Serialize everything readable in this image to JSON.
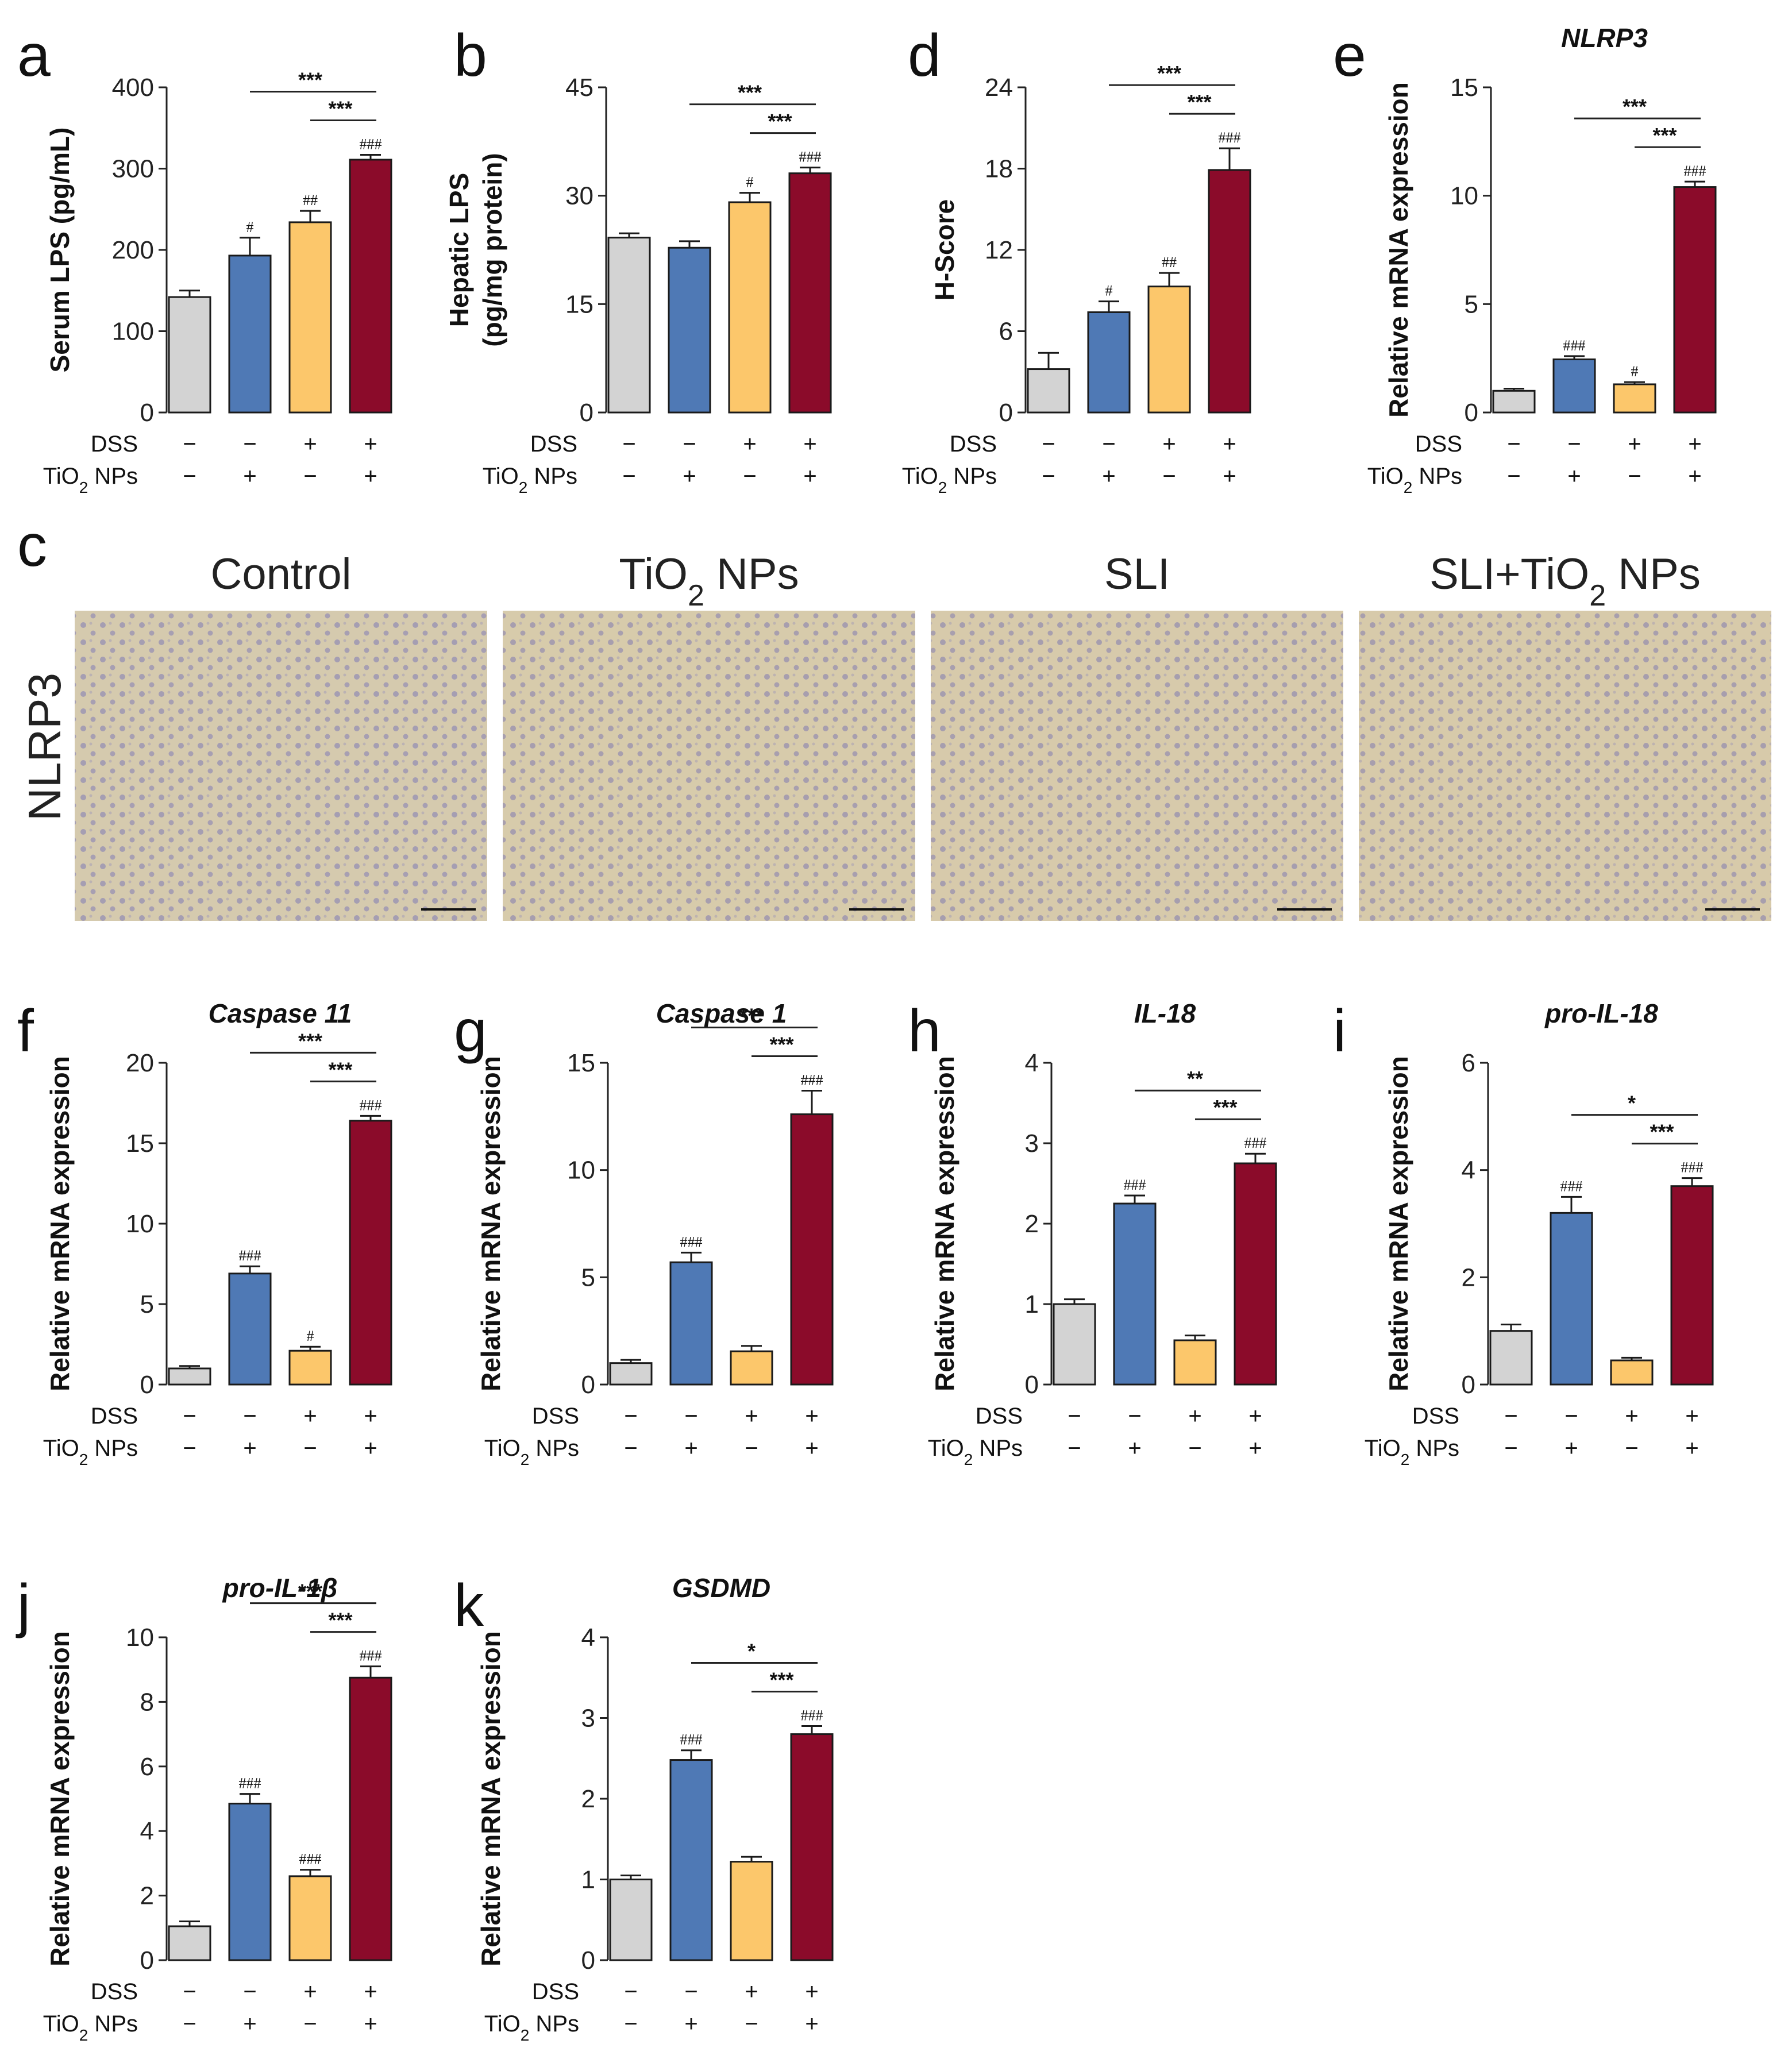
{
  "colors": [
    "#d3d3d3",
    "#4f79b5",
    "#fcc76b",
    "#8b0b2a"
  ],
  "treatment_rows": {
    "dss_label": "DSS",
    "tio2_label": "TiO",
    "tio2_sub": "2",
    "tio2_suffix": " NPs",
    "dss": [
      "−",
      "−",
      "+",
      "+"
    ],
    "tio2": [
      "−",
      "+",
      "−",
      "+"
    ]
  },
  "histology": {
    "panel_label": "c",
    "row_label": "NLRP3",
    "images": [
      {
        "title": "Control"
      },
      {
        "title": "TiO",
        "sub": "2",
        "suffix": " NPs"
      },
      {
        "title": "SLI"
      },
      {
        "title": "SLI+TiO",
        "sub": "2",
        "suffix": " NPs"
      }
    ]
  },
  "chart_data": [
    {
      "id": "a",
      "panel": "a",
      "type": "bar",
      "title": "",
      "ylabel": [
        "Serum LPS (pg/mL)"
      ],
      "ylim": [
        0,
        400
      ],
      "yticks": [
        0,
        100,
        200,
        300,
        400
      ],
      "values": [
        142,
        193,
        234,
        311
      ],
      "errors": [
        8,
        22,
        14,
        6
      ],
      "hashes": [
        "",
        "#",
        "##",
        "###"
      ],
      "brackets": [
        {
          "from": 1,
          "to": 3,
          "label": "***"
        },
        {
          "from": 2,
          "to": 3,
          "label": "***"
        }
      ]
    },
    {
      "id": "b",
      "panel": "b",
      "type": "bar",
      "title": "",
      "ylabel": [
        "Hepatic LPS",
        "(pg/mg protein)"
      ],
      "ylim": [
        0,
        45
      ],
      "yticks": [
        0,
        15,
        30,
        45
      ],
      "values": [
        24.2,
        22.8,
        29.1,
        33.1
      ],
      "errors": [
        0.6,
        0.9,
        1.3,
        0.8
      ],
      "hashes": [
        "",
        "",
        "#",
        "###"
      ],
      "brackets": [
        {
          "from": 1,
          "to": 3,
          "label": "***"
        },
        {
          "from": 2,
          "to": 3,
          "label": "***"
        }
      ]
    },
    {
      "id": "d",
      "panel": "d",
      "type": "bar",
      "title": "",
      "ylabel": [
        "H-Score"
      ],
      "ylim": [
        0,
        24
      ],
      "yticks": [
        0,
        6,
        12,
        18,
        24
      ],
      "values": [
        3.2,
        7.4,
        9.3,
        17.9
      ],
      "errors": [
        1.2,
        0.8,
        1.0,
        1.6
      ],
      "hashes": [
        "",
        "#",
        "##",
        "###"
      ],
      "brackets": [
        {
          "from": 1,
          "to": 3,
          "label": "***"
        },
        {
          "from": 2,
          "to": 3,
          "label": "***"
        }
      ]
    },
    {
      "id": "e",
      "panel": "e",
      "type": "bar",
      "title": "NLRP3",
      "ylabel": [
        "Relative mRNA expression"
      ],
      "ylim": [
        0,
        15
      ],
      "yticks": [
        0,
        5,
        10,
        15
      ],
      "values": [
        1.0,
        2.45,
        1.3,
        10.4
      ],
      "errors": [
        0.1,
        0.15,
        0.1,
        0.25
      ],
      "hashes": [
        "",
        "###",
        "#",
        "###"
      ],
      "brackets": [
        {
          "from": 1,
          "to": 3,
          "label": "***"
        },
        {
          "from": 2,
          "to": 3,
          "label": "***"
        }
      ]
    },
    {
      "id": "f",
      "panel": "f",
      "type": "bar",
      "title": "Caspase 11",
      "ylabel": [
        "Relative mRNA expression"
      ],
      "ylim": [
        0,
        20
      ],
      "yticks": [
        0,
        5,
        10,
        15,
        20
      ],
      "values": [
        1.0,
        6.9,
        2.1,
        16.4
      ],
      "errors": [
        0.15,
        0.45,
        0.25,
        0.3
      ],
      "hashes": [
        "",
        "###",
        "#",
        "###"
      ],
      "brackets": [
        {
          "from": 1,
          "to": 3,
          "label": "***"
        },
        {
          "from": 2,
          "to": 3,
          "label": "***"
        }
      ]
    },
    {
      "id": "g",
      "panel": "g",
      "type": "bar",
      "title": "Caspase 1",
      "ylabel": [
        "Relative mRNA expression"
      ],
      "ylim": [
        0,
        15
      ],
      "yticks": [
        0,
        5,
        10,
        15
      ],
      "values": [
        1.0,
        5.7,
        1.55,
        12.6
      ],
      "errors": [
        0.15,
        0.45,
        0.25,
        1.1
      ],
      "hashes": [
        "",
        "###",
        "",
        "###"
      ],
      "brackets": [
        {
          "from": 1,
          "to": 3,
          "label": "***"
        },
        {
          "from": 2,
          "to": 3,
          "label": "***"
        }
      ]
    },
    {
      "id": "h",
      "panel": "h",
      "type": "bar",
      "title": "IL-18",
      "ylabel": [
        "Relative mRNA expression"
      ],
      "ylim": [
        0,
        4
      ],
      "yticks": [
        0,
        1,
        2,
        3,
        4
      ],
      "values": [
        1.0,
        2.25,
        0.55,
        2.75
      ],
      "errors": [
        0.06,
        0.1,
        0.06,
        0.12
      ],
      "hashes": [
        "",
        "###",
        "",
        "###"
      ],
      "brackets": [
        {
          "from": 1,
          "to": 3,
          "label": "**"
        },
        {
          "from": 2,
          "to": 3,
          "label": "***"
        }
      ]
    },
    {
      "id": "i",
      "panel": "i",
      "type": "bar",
      "title": "pro-IL-18",
      "ylabel": [
        "Relative mRNA expression"
      ],
      "ylim": [
        0,
        6
      ],
      "yticks": [
        0,
        2,
        4,
        6
      ],
      "values": [
        1.0,
        3.2,
        0.45,
        3.7
      ],
      "errors": [
        0.12,
        0.3,
        0.05,
        0.15
      ],
      "hashes": [
        "",
        "###",
        "",
        "###"
      ],
      "brackets": [
        {
          "from": 1,
          "to": 3,
          "label": "*"
        },
        {
          "from": 2,
          "to": 3,
          "label": "***"
        }
      ]
    },
    {
      "id": "j",
      "panel": "j",
      "type": "bar",
      "title": "pro-IL-1β",
      "ylabel": [
        "Relative mRNA expression"
      ],
      "ylim": [
        0,
        10
      ],
      "yticks": [
        0,
        2,
        4,
        6,
        8,
        10
      ],
      "values": [
        1.05,
        4.85,
        2.6,
        8.75
      ],
      "errors": [
        0.15,
        0.3,
        0.2,
        0.35
      ],
      "hashes": [
        "",
        "###",
        "###",
        "###"
      ],
      "brackets": [
        {
          "from": 1,
          "to": 3,
          "label": "***"
        },
        {
          "from": 2,
          "to": 3,
          "label": "***"
        }
      ]
    },
    {
      "id": "k",
      "panel": "k",
      "type": "bar",
      "title": "GSDMD",
      "ylabel": [
        "Relative mRNA expression"
      ],
      "ylim": [
        0,
        4
      ],
      "yticks": [
        0,
        1,
        2,
        3,
        4
      ],
      "values": [
        1.0,
        2.48,
        1.22,
        2.8
      ],
      "errors": [
        0.05,
        0.12,
        0.06,
        0.1
      ],
      "hashes": [
        "",
        "###",
        "",
        "###"
      ],
      "brackets": [
        {
          "from": 1,
          "to": 3,
          "label": "*"
        },
        {
          "from": 2,
          "to": 3,
          "label": "***"
        }
      ]
    }
  ]
}
